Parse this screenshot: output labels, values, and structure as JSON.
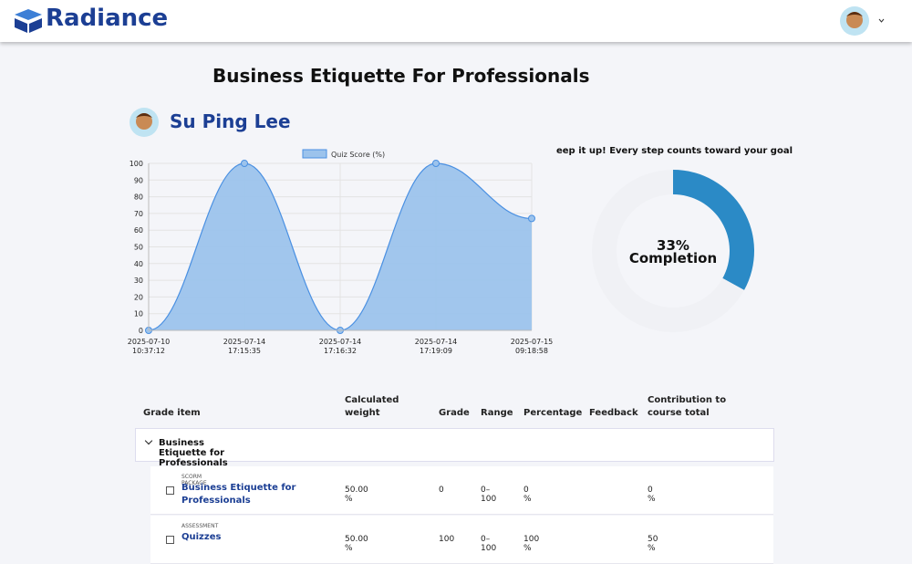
{
  "header": {
    "brand": "Radiance"
  },
  "page": {
    "title": "Business Etiquette For Professionals",
    "student": "Su Ping Lee"
  },
  "chart_data": [
    {
      "type": "line",
      "legend": "Quiz Score (%)",
      "color": "#4a90e2",
      "fill": "#9cc3ec",
      "categories": [
        [
          "2025-07-10",
          "10:37:12"
        ],
        [
          "2025-07-14",
          "17:15:35"
        ],
        [
          "2025-07-14",
          "17:16:32"
        ],
        [
          "2025-07-14",
          "17:19:09"
        ],
        [
          "2025-07-15",
          "09:18:58"
        ]
      ],
      "values": [
        0,
        100,
        0,
        100,
        67
      ],
      "ylim": [
        0,
        100
      ],
      "yticks": [
        0,
        10,
        20,
        30,
        40,
        50,
        60,
        70,
        80,
        90,
        100
      ],
      "grid": true
    },
    {
      "type": "doughnut",
      "title": "Keep it up! Every step counts toward your goal!",
      "values": [
        33,
        67
      ],
      "value_labels": [
        "33%"
      ],
      "center_label": "Completion",
      "colors": [
        "#2b8ac6",
        "#f0f1f5"
      ]
    }
  ],
  "table": {
    "headers": [
      "Grade item",
      "Calculated weight",
      "Grade",
      "Range",
      "Percentage",
      "Feedback",
      "Contribution to course total"
    ],
    "section": "Business Etiquette for Professionals",
    "rows": [
      {
        "type": "SCORM PACKAGE",
        "name": "Business Etiquette for Professionals",
        "weight": "50.00 %",
        "grade": "0",
        "range": "0–100",
        "percentage": "0 %",
        "contribution": "0 %"
      },
      {
        "type": "ASSESSMENT",
        "name": "Quizzes",
        "weight": "50.00 %",
        "grade": "100",
        "range": "0–100",
        "percentage": "100 %",
        "contribution": "50 %"
      }
    ]
  }
}
